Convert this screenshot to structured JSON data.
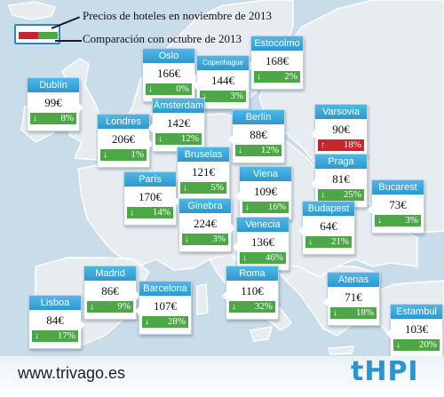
{
  "colors": {
    "sea": "#c9dcea",
    "land": "#e7ecf1",
    "border": "#ffffff",
    "header_blue": "#3aa7dc",
    "decrease": "#4ea746",
    "increase": "#c8262d"
  },
  "legend": {
    "price_label": "Precios de hoteles en noviembre de 2013",
    "change_label": "Comparación con octubre de 2013"
  },
  "footer": {
    "url": "www.trivago.es",
    "logo": "tHPI"
  },
  "chart_data": {
    "type": "table",
    "unit": "€",
    "columns": [
      "city",
      "price",
      "direction",
      "change"
    ],
    "rows": [
      {
        "city": "Oslo",
        "price": "166€",
        "direction": "down",
        "arrow": "↓",
        "change": "0%"
      },
      {
        "city": "Estocolmo",
        "price": "168€",
        "direction": "down",
        "arrow": "↓",
        "change": "2%"
      },
      {
        "city": "Copenhague",
        "price": "144€",
        "direction": "down",
        "arrow": "↓",
        "change": "3%"
      },
      {
        "city": "Dublín",
        "price": "99€",
        "direction": "down",
        "arrow": "↓",
        "change": "8%"
      },
      {
        "city": "Londres",
        "price": "206€",
        "direction": "down",
        "arrow": "↓",
        "change": "1%"
      },
      {
        "city": "Ámsterdam",
        "price": "142€",
        "direction": "down",
        "arrow": "↓",
        "change": "12%"
      },
      {
        "city": "Berlín",
        "price": "88€",
        "direction": "down",
        "arrow": "↓",
        "change": "12%"
      },
      {
        "city": "Varsovia",
        "price": "90€",
        "direction": "up",
        "arrow": "↑",
        "change": "18%"
      },
      {
        "city": "Bruselas",
        "price": "121€",
        "direction": "down",
        "arrow": "↓",
        "change": "5%"
      },
      {
        "city": "París",
        "price": "170€",
        "direction": "down",
        "arrow": "↓",
        "change": "14%"
      },
      {
        "city": "Viena",
        "price": "109€",
        "direction": "down",
        "arrow": "↓",
        "change": "16%"
      },
      {
        "city": "Praga",
        "price": "81€",
        "direction": "down",
        "arrow": "↓",
        "change": "25%"
      },
      {
        "city": "Bucarest",
        "price": "73€",
        "direction": "down",
        "arrow": "↓",
        "change": "3%"
      },
      {
        "city": "Ginebra",
        "price": "224€",
        "direction": "down",
        "arrow": "↓",
        "change": "3%"
      },
      {
        "city": "Budapest",
        "price": "64€",
        "direction": "down",
        "arrow": "↓",
        "change": "21%"
      },
      {
        "city": "Venecia",
        "price": "136€",
        "direction": "down",
        "arrow": "↓",
        "change": "46%"
      },
      {
        "city": "Madrid",
        "price": "86€",
        "direction": "down",
        "arrow": "↓",
        "change": "9%"
      },
      {
        "city": "Barcelona",
        "price": "107€",
        "direction": "down",
        "arrow": "↓",
        "change": "28%"
      },
      {
        "city": "Roma",
        "price": "110€",
        "direction": "down",
        "arrow": "↓",
        "change": "32%"
      },
      {
        "city": "Atenas",
        "price": "71€",
        "direction": "down",
        "arrow": "↓",
        "change": "18%"
      },
      {
        "city": "Lisboa",
        "price": "84€",
        "direction": "down",
        "arrow": "↓",
        "change": "17%"
      },
      {
        "city": "Estambul",
        "price": "103€",
        "direction": "down",
        "arrow": "↓",
        "change": "20%"
      }
    ]
  }
}
